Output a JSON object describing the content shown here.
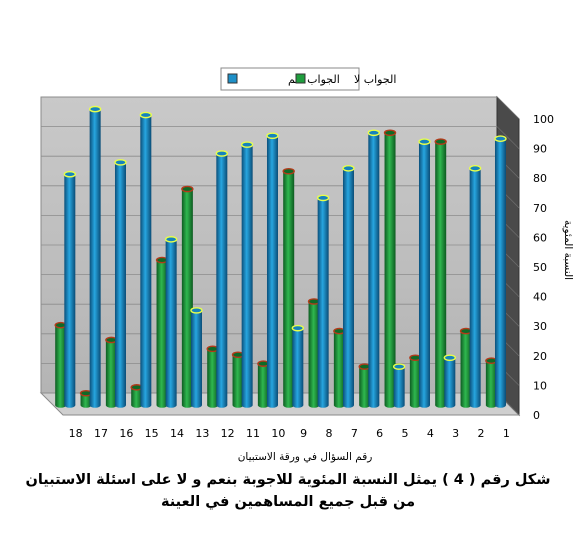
{
  "chart_data": {
    "type": "bar",
    "style": "3d-cylinder",
    "categories": [
      "18",
      "17",
      "16",
      "15",
      "14",
      "13",
      "12",
      "11",
      "10",
      "9",
      "8",
      "7",
      "6",
      "5",
      "4",
      "3",
      "2",
      "1"
    ],
    "series": [
      {
        "name": "الجواب لا",
        "color": "#1f9e3e",
        "values": [
          27,
          4,
          22,
          6,
          49,
          73,
          19,
          17,
          14,
          79,
          35,
          25,
          13,
          92,
          16,
          89,
          25,
          15
        ]
      },
      {
        "name": "الجواب نعم",
        "color": "#1e90c8",
        "values": [
          78,
          100,
          82,
          98,
          56,
          32,
          85,
          88,
          91,
          26,
          70,
          80,
          92,
          13,
          89,
          16,
          80,
          90
        ]
      }
    ],
    "xlabel": "رقم السؤال في ورقة الاستبيان",
    "ylabel": "النسبة المئوية",
    "ylim": [
      0,
      100
    ],
    "yticks": [
      0,
      10,
      20,
      30,
      40,
      50,
      60,
      70,
      80,
      90,
      100
    ],
    "grid": true,
    "legend_position": "top-center"
  },
  "caption": {
    "line1": "شكل رقم ( 4 )   يمثل النسبة المئوية للاجوبة بنعم و لا على اسئلة الاستبيان",
    "line2": "من  قبل جميع المساهمين في العينة"
  }
}
